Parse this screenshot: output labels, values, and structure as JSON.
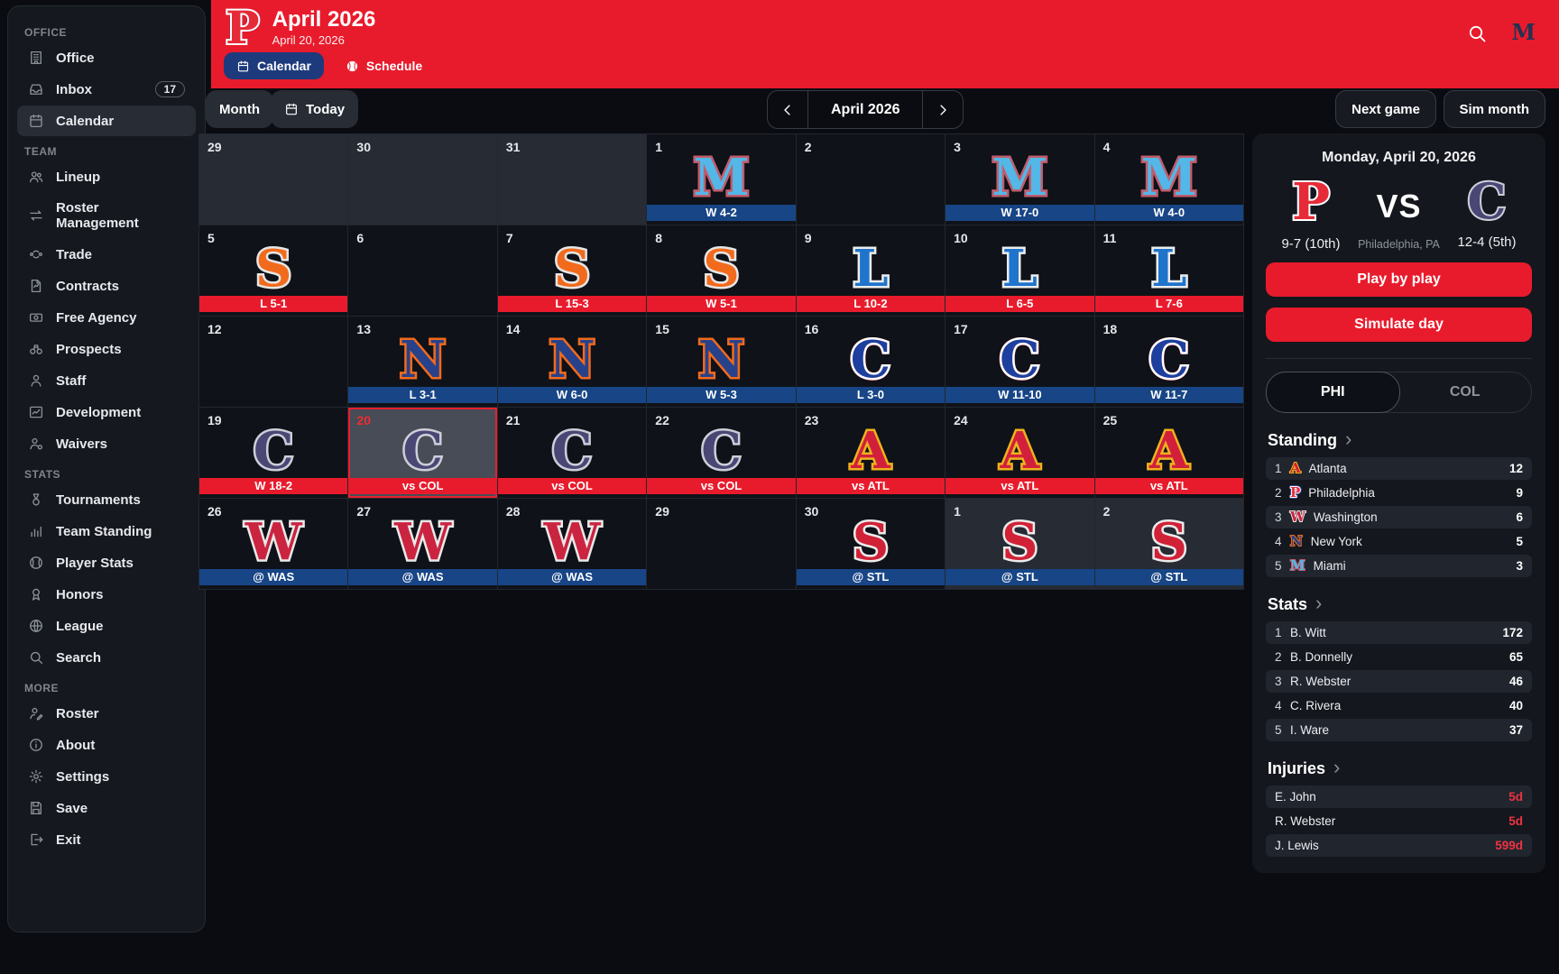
{
  "colors": {
    "accent_red": "#e81b2c",
    "away_blue": "#174586",
    "tab_blue": "#1d3a7c",
    "panel_bg": "#14171d"
  },
  "sidebar": {
    "sections": [
      {
        "label": "OFFICE",
        "items": [
          {
            "id": "office",
            "icon": "building",
            "label": "Office"
          },
          {
            "id": "inbox",
            "icon": "inbox-tray",
            "label": "Inbox",
            "badge": "17"
          },
          {
            "id": "calendar",
            "icon": "calendar",
            "label": "Calendar",
            "active": true
          }
        ]
      },
      {
        "label": "TEAM",
        "items": [
          {
            "id": "lineup",
            "icon": "users",
            "label": "Lineup"
          },
          {
            "id": "roster-management",
            "icon": "swap-arrows",
            "label": "Roster Management"
          },
          {
            "id": "trade",
            "icon": "trade-arrows",
            "label": "Trade"
          },
          {
            "id": "contracts",
            "icon": "document",
            "label": "Contracts"
          },
          {
            "id": "free-agency",
            "icon": "cash",
            "label": "Free Agency"
          },
          {
            "id": "prospects",
            "icon": "binoculars",
            "label": "Prospects"
          },
          {
            "id": "staff",
            "icon": "person",
            "label": "Staff"
          },
          {
            "id": "development",
            "icon": "line-chart",
            "label": "Development"
          },
          {
            "id": "waivers",
            "icon": "person-out",
            "label": "Waivers"
          }
        ]
      },
      {
        "label": "STATS",
        "items": [
          {
            "id": "tournaments",
            "icon": "medal",
            "label": "Tournaments"
          },
          {
            "id": "team-standing",
            "icon": "bar-chart",
            "label": "Team Standing"
          },
          {
            "id": "player-stats",
            "icon": "baseball",
            "label": "Player Stats"
          },
          {
            "id": "honors",
            "icon": "ribbon",
            "label": "Honors"
          },
          {
            "id": "league",
            "icon": "globe",
            "label": "League"
          },
          {
            "id": "search",
            "icon": "search",
            "label": "Search"
          }
        ]
      },
      {
        "label": "MORE",
        "items": [
          {
            "id": "roster",
            "icon": "person-edit",
            "label": "Roster"
          },
          {
            "id": "about",
            "icon": "info",
            "label": "About"
          },
          {
            "id": "settings",
            "icon": "gear",
            "label": "Settings"
          },
          {
            "id": "save",
            "icon": "floppy",
            "label": "Save"
          },
          {
            "id": "exit",
            "icon": "logout",
            "label": "Exit"
          }
        ]
      }
    ]
  },
  "header": {
    "title": "April 2026",
    "subtitle": "April 20, 2026",
    "team_logo": "p_red",
    "league_logo": "m_league",
    "tabs": [
      {
        "label": "Calendar",
        "icon": "calendar",
        "active": true
      },
      {
        "label": "Schedule",
        "icon": "baseball-white",
        "active": false
      }
    ]
  },
  "toolbar": {
    "month_view_label": "Month",
    "today_label": "Today",
    "month_label": "April 2026",
    "next_game_label": "Next game",
    "sim_month_label": "Sim month"
  },
  "team_logos": {
    "m_sky": {
      "letter": "M",
      "fill": "#53b7e8",
      "stroke": "#c05d6d"
    },
    "s_orange": {
      "letter": "S",
      "fill": "#f26a1c",
      "stroke": "#e6e6e6"
    },
    "l_blue": {
      "letter": "L",
      "fill": "#1f74cc",
      "stroke": "#ececec"
    },
    "n_navy": {
      "letter": "N",
      "fill": "#27418a",
      "stroke": "#f26a1c"
    },
    "c_blue": {
      "letter": "C",
      "fill": "#1f3f9e",
      "stroke": "#ffffff",
      "shadow": "#d9293b"
    },
    "c_purple": {
      "letter": "C",
      "fill": "#4a4775",
      "stroke": "#cdced8"
    },
    "a_red": {
      "letter": "A",
      "fill": "#d2203c",
      "stroke": "#eeb21d"
    },
    "w_red": {
      "letter": "W",
      "fill": "#cb2440",
      "stroke": "#e9e9e9"
    },
    "s_red": {
      "letter": "S",
      "fill": "#d12137",
      "stroke": "#ebebeb"
    },
    "p_red": {
      "letter": "P",
      "fill": "#e62b38",
      "stroke": "#ffffff",
      "shadow": "#2d4a9e"
    },
    "m_league": {
      "letter": "M",
      "fill": "#243154"
    }
  },
  "calendar": {
    "cells": [
      {
        "date": "29",
        "outside": true
      },
      {
        "date": "30",
        "outside": true
      },
      {
        "date": "31",
        "outside": true
      },
      {
        "date": "1",
        "logo": "m_sky",
        "result": "W 4-2",
        "result_type": "away"
      },
      {
        "date": "2"
      },
      {
        "date": "3",
        "logo": "m_sky",
        "result": "W 17-0",
        "result_type": "away"
      },
      {
        "date": "4",
        "logo": "m_sky",
        "result": "W 4-0",
        "result_type": "away"
      },
      {
        "date": "5",
        "logo": "s_orange",
        "result": "L 5-1",
        "result_type": "home"
      },
      {
        "date": "6"
      },
      {
        "date": "7",
        "logo": "s_orange",
        "result": "L 15-3",
        "result_type": "home"
      },
      {
        "date": "8",
        "logo": "s_orange",
        "result": "W 5-1",
        "result_type": "home"
      },
      {
        "date": "9",
        "logo": "l_blue",
        "result": "L 10-2",
        "result_type": "home"
      },
      {
        "date": "10",
        "logo": "l_blue",
        "result": "L 6-5",
        "result_type": "home"
      },
      {
        "date": "11",
        "logo": "l_blue",
        "result": "L 7-6",
        "result_type": "home"
      },
      {
        "date": "12"
      },
      {
        "date": "13",
        "logo": "n_navy",
        "result": "L 3-1",
        "result_type": "away"
      },
      {
        "date": "14",
        "logo": "n_navy",
        "result": "W 6-0",
        "result_type": "away"
      },
      {
        "date": "15",
        "logo": "n_navy",
        "result": "W 5-3",
        "result_type": "away"
      },
      {
        "date": "16",
        "logo": "c_blue",
        "result": "L 3-0",
        "result_type": "away"
      },
      {
        "date": "17",
        "logo": "c_blue",
        "result": "W 11-10",
        "result_type": "away"
      },
      {
        "date": "18",
        "logo": "c_blue",
        "result": "W 11-7",
        "result_type": "away"
      },
      {
        "date": "19",
        "logo": "c_purple",
        "result": "W 18-2",
        "result_type": "home"
      },
      {
        "date": "20",
        "today": true,
        "logo": "c_purple",
        "result": "vs COL",
        "result_type": "home"
      },
      {
        "date": "21",
        "logo": "c_purple",
        "result": "vs COL",
        "result_type": "home"
      },
      {
        "date": "22",
        "logo": "c_purple",
        "result": "vs COL",
        "result_type": "home"
      },
      {
        "date": "23",
        "logo": "a_red",
        "result": "vs ATL",
        "result_type": "home"
      },
      {
        "date": "24",
        "logo": "a_red",
        "result": "vs ATL",
        "result_type": "home"
      },
      {
        "date": "25",
        "logo": "a_red",
        "result": "vs ATL",
        "result_type": "home"
      },
      {
        "date": "26",
        "logo": "w_red",
        "result": "@ WAS",
        "result_type": "away"
      },
      {
        "date": "27",
        "logo": "w_red",
        "result": "@ WAS",
        "result_type": "away"
      },
      {
        "date": "28",
        "logo": "w_red",
        "result": "@ WAS",
        "result_type": "away"
      },
      {
        "date": "29"
      },
      {
        "date": "30",
        "logo": "s_red",
        "result": "@ STL",
        "result_type": "away"
      },
      {
        "date": "1",
        "outside": true,
        "logo": "s_red",
        "result": "@ STL",
        "result_type": "away"
      },
      {
        "date": "2",
        "outside": true,
        "logo": "s_red",
        "result": "@ STL",
        "result_type": "away"
      }
    ]
  },
  "game_panel": {
    "date": "Monday, April 20, 2026",
    "home_logo": "p_red",
    "away_logo": "c_purple",
    "home_record": "9-7 (10th)",
    "away_record": "12-4 (5th)",
    "vs_label": "VS",
    "location": "Philadelphia, PA",
    "play_button_label": "Play by play",
    "sim_button_label": "Simulate day",
    "tabs": [
      {
        "label": "PHI",
        "active": true
      },
      {
        "label": "COL",
        "active": false
      }
    ],
    "standing": {
      "title": "Standing",
      "rows": [
        {
          "rank": "1",
          "logo": "a_red",
          "name": "Atlanta",
          "value": "12"
        },
        {
          "rank": "2",
          "logo": "p_red",
          "name": "Philadelphia",
          "value": "9"
        },
        {
          "rank": "3",
          "logo": "w_red",
          "name": "Washington",
          "value": "6"
        },
        {
          "rank": "4",
          "logo": "n_navy",
          "name": "New York",
          "value": "5"
        },
        {
          "rank": "5",
          "logo": "m_sky",
          "name": "Miami",
          "value": "3"
        }
      ]
    },
    "stats": {
      "title": "Stats",
      "rows": [
        {
          "rank": "1",
          "name": "B. Witt",
          "value": "172"
        },
        {
          "rank": "2",
          "name": "B. Donnelly",
          "value": "65"
        },
        {
          "rank": "3",
          "name": "R. Webster",
          "value": "46"
        },
        {
          "rank": "4",
          "name": "C. Rivera",
          "value": "40"
        },
        {
          "rank": "5",
          "name": "I. Ware",
          "value": "37"
        }
      ]
    },
    "injuries": {
      "title": "Injuries",
      "rows": [
        {
          "name": "E. John",
          "value": "5d"
        },
        {
          "name": "R. Webster",
          "value": "5d"
        },
        {
          "name": "J. Lewis",
          "value": "599d"
        }
      ]
    }
  }
}
